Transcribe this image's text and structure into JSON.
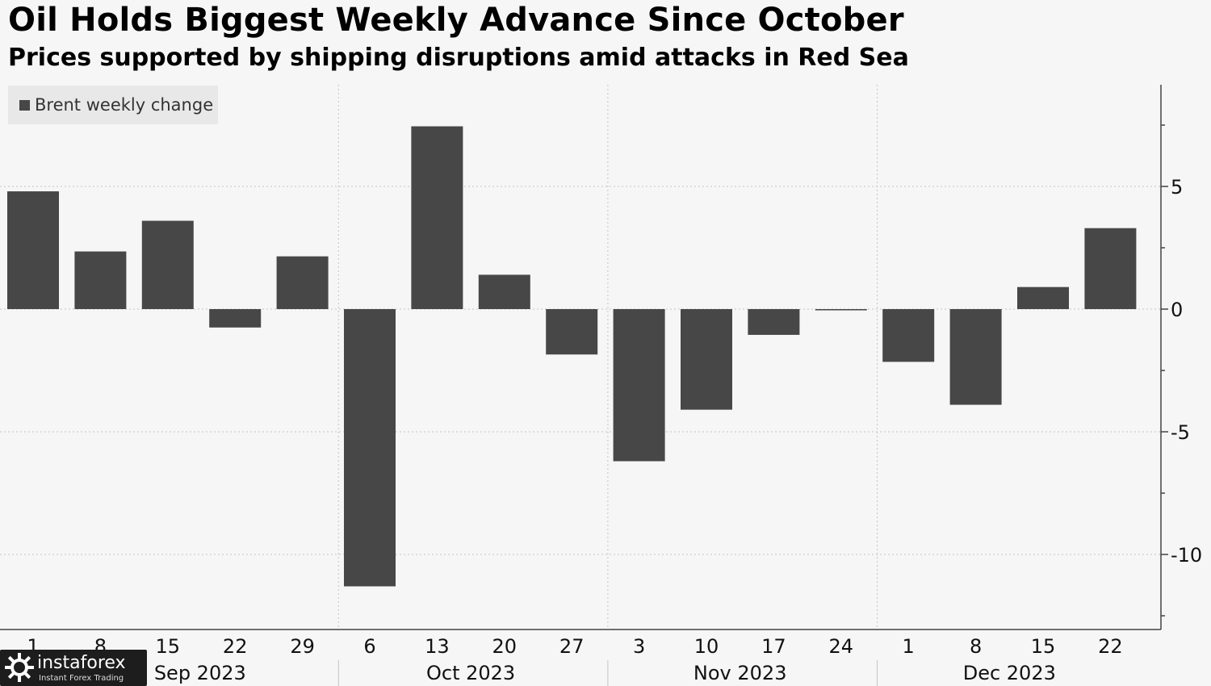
{
  "chart_data": {
    "type": "bar",
    "title": "Oil Holds Biggest Weekly Advance Since October",
    "subtitle": "Prices supported by shipping disruptions amid attacks in Red Sea",
    "legend": {
      "placement": "top-left",
      "entries": [
        "Brent weekly change"
      ]
    },
    "series": [
      {
        "name": "Brent weekly change",
        "color": "#474747",
        "values": [
          4.8,
          2.35,
          3.6,
          -0.75,
          2.15,
          -11.3,
          7.45,
          1.4,
          -1.85,
          -6.2,
          -4.1,
          -1.05,
          -0.05,
          -2.15,
          -3.9,
          0.9,
          3.3
        ]
      }
    ],
    "categories": [
      "1",
      "8",
      "15",
      "22",
      "29",
      "6",
      "13",
      "20",
      "27",
      "3",
      "10",
      "17",
      "24",
      "1",
      "8",
      "15",
      "22"
    ],
    "x_groups": [
      {
        "label": "Sep 2023",
        "from": 0,
        "to": 4
      },
      {
        "label": "Oct 2023",
        "from": 5,
        "to": 8
      },
      {
        "label": "Nov 2023",
        "from": 9,
        "to": 12
      },
      {
        "label": "Dec 2023",
        "from": 13,
        "to": 16
      }
    ],
    "y_ticks": [
      5,
      0,
      -5,
      -10
    ],
    "y_tick_labels": [
      "5",
      "0",
      "-5",
      "-10"
    ],
    "ylim": [
      -12.9,
      9.3
    ],
    "y_axis_side": "right",
    "grid": true,
    "xlabel": "",
    "ylabel": ""
  },
  "watermark": {
    "brand": "instaforex",
    "tagline": "Instant Forex Trading"
  }
}
